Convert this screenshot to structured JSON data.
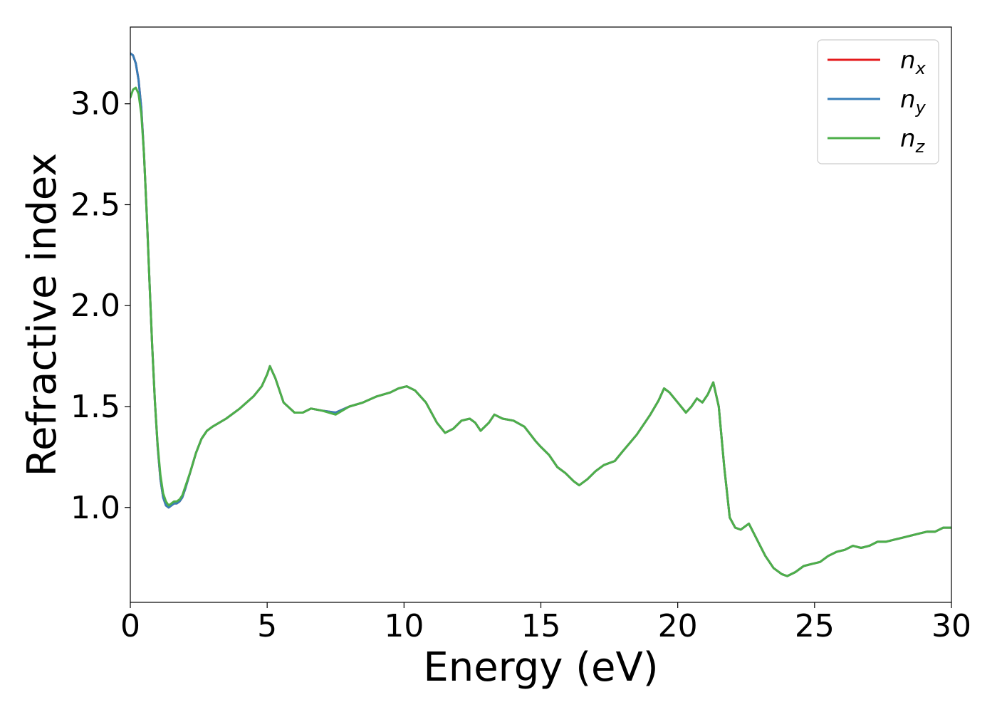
{
  "chart_data": {
    "type": "line",
    "title": "",
    "xlabel": "Energy (eV)",
    "ylabel": "Refractive index",
    "xlim": [
      0,
      30
    ],
    "ylim": [
      0.53,
      3.38
    ],
    "xticks": [
      0,
      5,
      10,
      15,
      20,
      25,
      30
    ],
    "yticks": [
      1.0,
      1.5,
      2.0,
      2.5,
      3.0
    ],
    "xtick_labels": [
      "0",
      "5",
      "10",
      "15",
      "20",
      "25",
      "30"
    ],
    "ytick_labels": [
      "1.0",
      "1.5",
      "2.0",
      "2.5",
      "3.0"
    ],
    "grid": false,
    "legend": {
      "placement": "top-right"
    },
    "series": [
      {
        "name": "n",
        "sub": "x",
        "color": "#e41a1c",
        "x": [
          0,
          0.1,
          0.2,
          0.3,
          0.4,
          0.5,
          0.6,
          0.7,
          0.8,
          0.9,
          1.0,
          1.1,
          1.2,
          1.3,
          1.4,
          1.5,
          1.6,
          1.7,
          1.8,
          1.9,
          2.0,
          2.2,
          2.4,
          2.6,
          2.8,
          3.0,
          3.5,
          4.0,
          4.5,
          4.8,
          5.0,
          5.1,
          5.3,
          5.6,
          6.0,
          6.3,
          6.6,
          7.0,
          7.5,
          8.0,
          8.5,
          9.0,
          9.5,
          9.8,
          10.1,
          10.4,
          10.8,
          11.2,
          11.5,
          11.8,
          12.1,
          12.4,
          12.6,
          12.8,
          13.1,
          13.3,
          13.6,
          14.0,
          14.4,
          14.8,
          15.0,
          15.3,
          15.6,
          15.9,
          16.2,
          16.4,
          16.7,
          17.0,
          17.3,
          17.7,
          18.0,
          18.5,
          19.0,
          19.3,
          19.5,
          19.7,
          20.0,
          20.3,
          20.5,
          20.7,
          20.9,
          21.1,
          21.3,
          21.5,
          21.7,
          21.9,
          22.1,
          22.3,
          22.6,
          22.9,
          23.2,
          23.5,
          23.8,
          24.0,
          24.3,
          24.6,
          24.9,
          25.2,
          25.5,
          25.8,
          26.1,
          26.4,
          26.7,
          27.0,
          27.3,
          27.6,
          27.9,
          28.2,
          28.5,
          28.8,
          29.1,
          29.4,
          29.7,
          30.0
        ],
        "values": [
          3.25,
          3.24,
          3.2,
          3.12,
          2.98,
          2.75,
          2.45,
          2.12,
          1.8,
          1.52,
          1.3,
          1.14,
          1.05,
          1.01,
          1.0,
          1.01,
          1.02,
          1.02,
          1.03,
          1.05,
          1.09,
          1.18,
          1.27,
          1.34,
          1.38,
          1.4,
          1.44,
          1.49,
          1.55,
          1.6,
          1.66,
          1.7,
          1.64,
          1.52,
          1.47,
          1.47,
          1.49,
          1.48,
          1.47,
          1.5,
          1.52,
          1.55,
          1.57,
          1.59,
          1.6,
          1.58,
          1.52,
          1.42,
          1.37,
          1.39,
          1.43,
          1.44,
          1.42,
          1.38,
          1.42,
          1.46,
          1.44,
          1.43,
          1.4,
          1.33,
          1.3,
          1.26,
          1.2,
          1.17,
          1.13,
          1.11,
          1.14,
          1.18,
          1.21,
          1.23,
          1.28,
          1.36,
          1.46,
          1.53,
          1.59,
          1.57,
          1.52,
          1.47,
          1.5,
          1.54,
          1.52,
          1.56,
          1.62,
          1.5,
          1.2,
          0.95,
          0.9,
          0.89,
          0.92,
          0.84,
          0.76,
          0.7,
          0.67,
          0.66,
          0.68,
          0.71,
          0.72,
          0.73,
          0.76,
          0.78,
          0.79,
          0.81,
          0.8,
          0.81,
          0.83,
          0.83,
          0.84,
          0.85,
          0.86,
          0.87,
          0.88,
          0.88,
          0.9,
          0.9
        ],
        "line_width": 3
      },
      {
        "name": "n",
        "sub": "y",
        "color": "#377eb8",
        "x": [
          0,
          0.1,
          0.2,
          0.3,
          0.4,
          0.5,
          0.6,
          0.7,
          0.8,
          0.9,
          1.0,
          1.1,
          1.2,
          1.3,
          1.4,
          1.5,
          1.6,
          1.7,
          1.8,
          1.9,
          2.0,
          2.2,
          2.4,
          2.6,
          2.8,
          3.0,
          3.5,
          4.0,
          4.5,
          4.8,
          5.0,
          5.1,
          5.3,
          5.6,
          6.0,
          6.3,
          6.6,
          7.0,
          7.5,
          8.0,
          8.5,
          9.0,
          9.5,
          9.8,
          10.1,
          10.4,
          10.8,
          11.2,
          11.5,
          11.8,
          12.1,
          12.4,
          12.6,
          12.8,
          13.1,
          13.3,
          13.6,
          14.0,
          14.4,
          14.8,
          15.0,
          15.3,
          15.6,
          15.9,
          16.2,
          16.4,
          16.7,
          17.0,
          17.3,
          17.7,
          18.0,
          18.5,
          19.0,
          19.3,
          19.5,
          19.7,
          20.0,
          20.3,
          20.5,
          20.7,
          20.9,
          21.1,
          21.3,
          21.5,
          21.7,
          21.9,
          22.1,
          22.3,
          22.6,
          22.9,
          23.2,
          23.5,
          23.8,
          24.0,
          24.3,
          24.6,
          24.9,
          25.2,
          25.5,
          25.8,
          26.1,
          26.4,
          26.7,
          27.0,
          27.3,
          27.6,
          27.9,
          28.2,
          28.5,
          28.8,
          29.1,
          29.4,
          29.7,
          30.0
        ],
        "values": [
          3.25,
          3.24,
          3.2,
          3.12,
          2.98,
          2.75,
          2.45,
          2.12,
          1.8,
          1.52,
          1.3,
          1.14,
          1.05,
          1.01,
          1.0,
          1.01,
          1.02,
          1.02,
          1.03,
          1.05,
          1.09,
          1.18,
          1.27,
          1.34,
          1.38,
          1.4,
          1.44,
          1.49,
          1.55,
          1.6,
          1.66,
          1.7,
          1.64,
          1.52,
          1.47,
          1.47,
          1.49,
          1.48,
          1.47,
          1.5,
          1.52,
          1.55,
          1.57,
          1.59,
          1.6,
          1.58,
          1.52,
          1.42,
          1.37,
          1.39,
          1.43,
          1.44,
          1.42,
          1.38,
          1.42,
          1.46,
          1.44,
          1.43,
          1.4,
          1.33,
          1.3,
          1.26,
          1.2,
          1.17,
          1.13,
          1.11,
          1.14,
          1.18,
          1.21,
          1.23,
          1.28,
          1.36,
          1.46,
          1.53,
          1.59,
          1.57,
          1.52,
          1.47,
          1.5,
          1.54,
          1.52,
          1.56,
          1.62,
          1.5,
          1.2,
          0.95,
          0.9,
          0.89,
          0.92,
          0.84,
          0.76,
          0.7,
          0.67,
          0.66,
          0.68,
          0.71,
          0.72,
          0.73,
          0.76,
          0.78,
          0.79,
          0.81,
          0.8,
          0.81,
          0.83,
          0.83,
          0.84,
          0.85,
          0.86,
          0.87,
          0.88,
          0.88,
          0.9,
          0.9
        ],
        "line_width": 3
      },
      {
        "name": "n",
        "sub": "z",
        "color": "#4daf4a",
        "x": [
          0,
          0.1,
          0.2,
          0.3,
          0.4,
          0.5,
          0.6,
          0.7,
          0.8,
          0.9,
          1.0,
          1.1,
          1.2,
          1.3,
          1.4,
          1.5,
          1.6,
          1.7,
          1.8,
          1.9,
          2.0,
          2.2,
          2.4,
          2.6,
          2.8,
          3.0,
          3.5,
          4.0,
          4.5,
          4.8,
          5.0,
          5.1,
          5.3,
          5.6,
          6.0,
          6.3,
          6.6,
          7.0,
          7.5,
          8.0,
          8.5,
          9.0,
          9.5,
          9.8,
          10.1,
          10.4,
          10.8,
          11.2,
          11.5,
          11.8,
          12.1,
          12.4,
          12.6,
          12.8,
          13.1,
          13.3,
          13.6,
          14.0,
          14.4,
          14.8,
          15.0,
          15.3,
          15.6,
          15.9,
          16.2,
          16.4,
          16.7,
          17.0,
          17.3,
          17.7,
          18.0,
          18.5,
          19.0,
          19.3,
          19.5,
          19.7,
          20.0,
          20.3,
          20.5,
          20.7,
          20.9,
          21.1,
          21.3,
          21.5,
          21.7,
          21.9,
          22.1,
          22.3,
          22.6,
          22.9,
          23.2,
          23.5,
          23.8,
          24.0,
          24.3,
          24.6,
          24.9,
          25.2,
          25.5,
          25.8,
          26.1,
          26.4,
          26.7,
          27.0,
          27.3,
          27.6,
          27.9,
          28.2,
          28.5,
          28.8,
          29.1,
          29.4,
          29.7,
          30.0
        ],
        "values": [
          3.03,
          3.07,
          3.08,
          3.05,
          2.95,
          2.75,
          2.45,
          2.12,
          1.8,
          1.52,
          1.31,
          1.16,
          1.07,
          1.03,
          1.01,
          1.02,
          1.03,
          1.03,
          1.04,
          1.06,
          1.1,
          1.18,
          1.27,
          1.34,
          1.38,
          1.4,
          1.44,
          1.49,
          1.55,
          1.6,
          1.66,
          1.7,
          1.64,
          1.52,
          1.47,
          1.47,
          1.49,
          1.48,
          1.46,
          1.5,
          1.52,
          1.55,
          1.57,
          1.59,
          1.6,
          1.58,
          1.52,
          1.42,
          1.37,
          1.39,
          1.43,
          1.44,
          1.42,
          1.38,
          1.42,
          1.46,
          1.44,
          1.43,
          1.4,
          1.33,
          1.3,
          1.26,
          1.2,
          1.17,
          1.13,
          1.11,
          1.14,
          1.18,
          1.21,
          1.23,
          1.28,
          1.36,
          1.46,
          1.53,
          1.59,
          1.57,
          1.52,
          1.47,
          1.5,
          1.54,
          1.52,
          1.56,
          1.62,
          1.5,
          1.2,
          0.95,
          0.9,
          0.89,
          0.92,
          0.84,
          0.76,
          0.7,
          0.67,
          0.66,
          0.68,
          0.71,
          0.72,
          0.73,
          0.76,
          0.78,
          0.79,
          0.81,
          0.8,
          0.81,
          0.83,
          0.83,
          0.84,
          0.85,
          0.86,
          0.87,
          0.88,
          0.88,
          0.9,
          0.9
        ],
        "line_width": 3
      }
    ]
  }
}
